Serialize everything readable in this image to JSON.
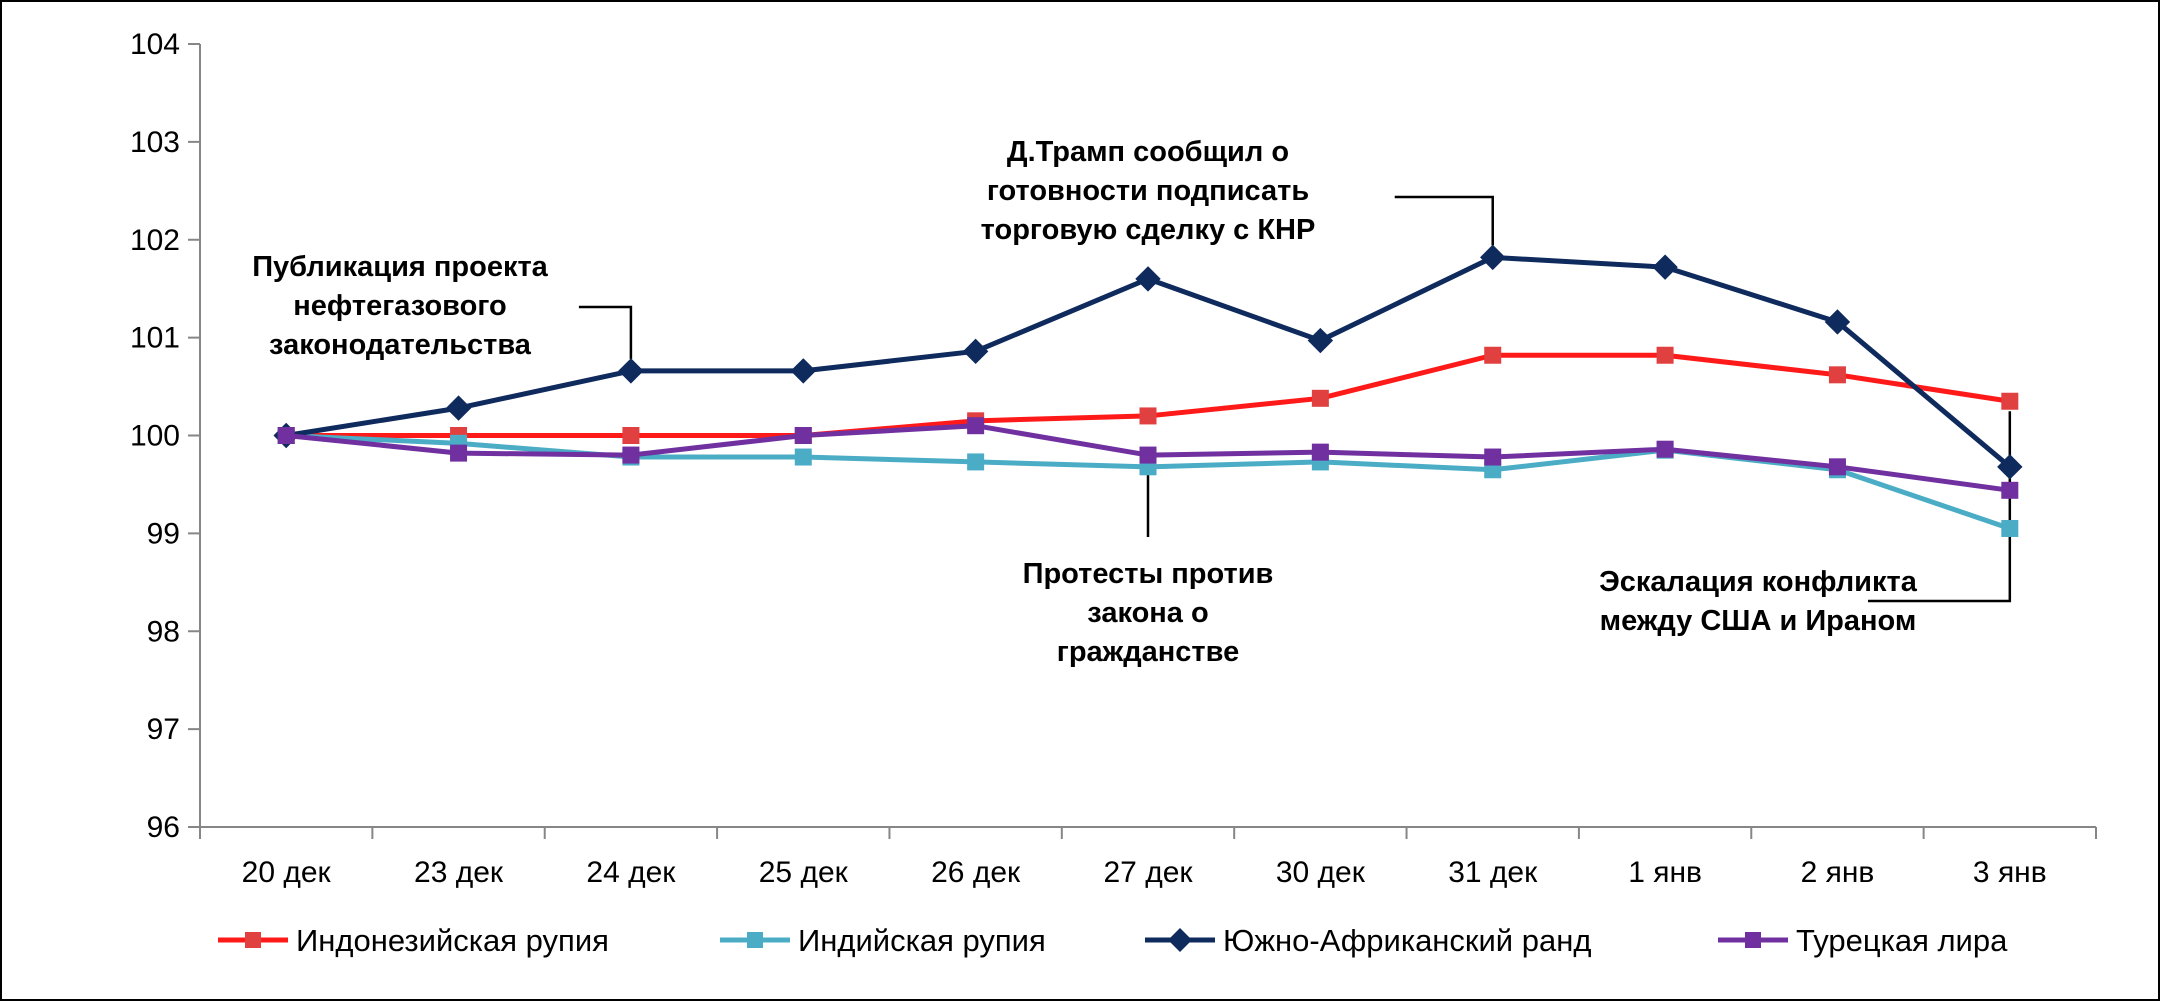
{
  "chart_data": {
    "type": "line",
    "title": "",
    "xlabel": "",
    "ylabel": "",
    "categories": [
      "20 дек",
      "23 дек",
      "24 дек",
      "25 дек",
      "26 дек",
      "27 дек",
      "30 дек",
      "31 дек",
      "1 янв",
      "2 янв",
      "3 янв"
    ],
    "ylim": [
      96,
      104
    ],
    "yticks": [
      "96",
      "97",
      "98",
      "99",
      "100",
      "101",
      "102",
      "103",
      "104"
    ],
    "grid": false,
    "legend_position": "bottom",
    "series": [
      {
        "name": "Индонезийская рупия",
        "color": "#ff1a1a",
        "marker_color": "#e0403f",
        "marker": "square",
        "values": [
          100.0,
          100.0,
          100.0,
          100.0,
          100.15,
          100.2,
          100.38,
          100.82,
          100.82,
          100.62,
          100.35
        ]
      },
      {
        "name": "Индийская рупия",
        "color": "#4bacc6",
        "marker_color": "#4bacc6",
        "marker": "square",
        "values": [
          100.0,
          99.92,
          99.78,
          99.78,
          99.73,
          99.68,
          99.73,
          99.65,
          99.85,
          99.65,
          99.05
        ]
      },
      {
        "name": "Южно-Африканский  ранд",
        "color": "#0f2a5c",
        "marker_color": "#0f2a5c",
        "marker": "diamond",
        "values": [
          100.0,
          100.28,
          100.66,
          100.66,
          100.86,
          101.6,
          100.97,
          101.82,
          101.72,
          101.16,
          99.68
        ]
      },
      {
        "name": "Турецкая лира",
        "color": "#7030a0",
        "marker_color": "#7030a0",
        "marker": "square",
        "values": [
          100.0,
          99.82,
          99.8,
          100.0,
          100.1,
          99.8,
          99.83,
          99.78,
          99.86,
          99.68,
          99.44
        ]
      }
    ],
    "annotations": [
      {
        "lines": [
          "Публикация проекта",
          "нефтегазового",
          "законодательства"
        ],
        "category_index": 2,
        "series_index": 2
      },
      {
        "lines": [
          "Д.Трамп сообщил о",
          "готовности подписать",
          "торговую сделку с КНР"
        ],
        "category_index": 7,
        "series_index": 2
      },
      {
        "lines": [
          "Протесты против",
          "закона о",
          "гражданстве"
        ],
        "category_index": 5,
        "series_index": 3
      },
      {
        "lines": [
          "Эскалация конфликта",
          "между США и Ираном"
        ],
        "category_index": 10,
        "series_index": 2
      }
    ]
  }
}
